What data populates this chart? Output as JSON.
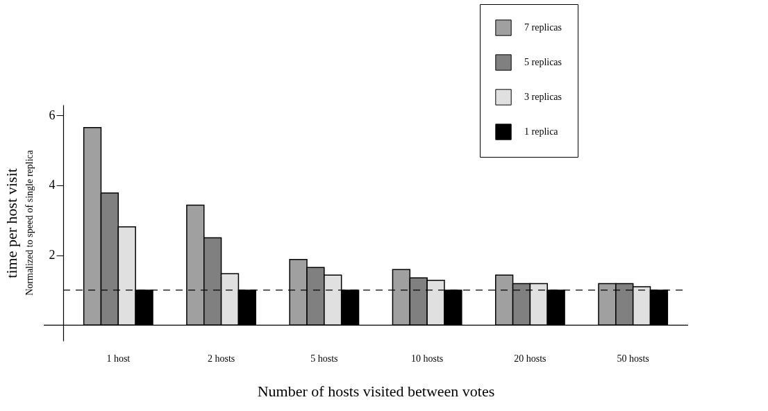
{
  "chart_data": {
    "type": "bar",
    "xlabel": "Number of hosts visited between votes",
    "ylabel": "time per host visit",
    "annotations": [
      "Normalized to speed of single replica"
    ],
    "categories": [
      "1 host",
      "2 hosts",
      "5 hosts",
      "10 hosts",
      "20 hosts",
      "50 hosts"
    ],
    "series": [
      {
        "name": "7 replicas",
        "color": "#a0a0a0",
        "values": [
          5.65,
          3.43,
          1.88,
          1.59,
          1.43,
          1.19
        ]
      },
      {
        "name": "5 replicas",
        "color": "#808080",
        "values": [
          3.78,
          2.5,
          1.65,
          1.35,
          1.19,
          1.19
        ]
      },
      {
        "name": "3 replicas",
        "color": "#e0e0e0",
        "values": [
          2.81,
          1.47,
          1.43,
          1.28,
          1.19,
          1.1
        ]
      },
      {
        "name": "1 replica",
        "color": "#000000",
        "values": [
          1,
          1,
          1,
          1,
          1,
          1
        ]
      }
    ],
    "ylim": [
      -0.45,
      6.3
    ],
    "yticks": [
      2,
      4,
      6
    ],
    "grid": false,
    "legend": "top right",
    "ref_lines": [
      {
        "axis": "y",
        "value": 1,
        "line_style": "dashed",
        "color": "#000000"
      }
    ]
  }
}
